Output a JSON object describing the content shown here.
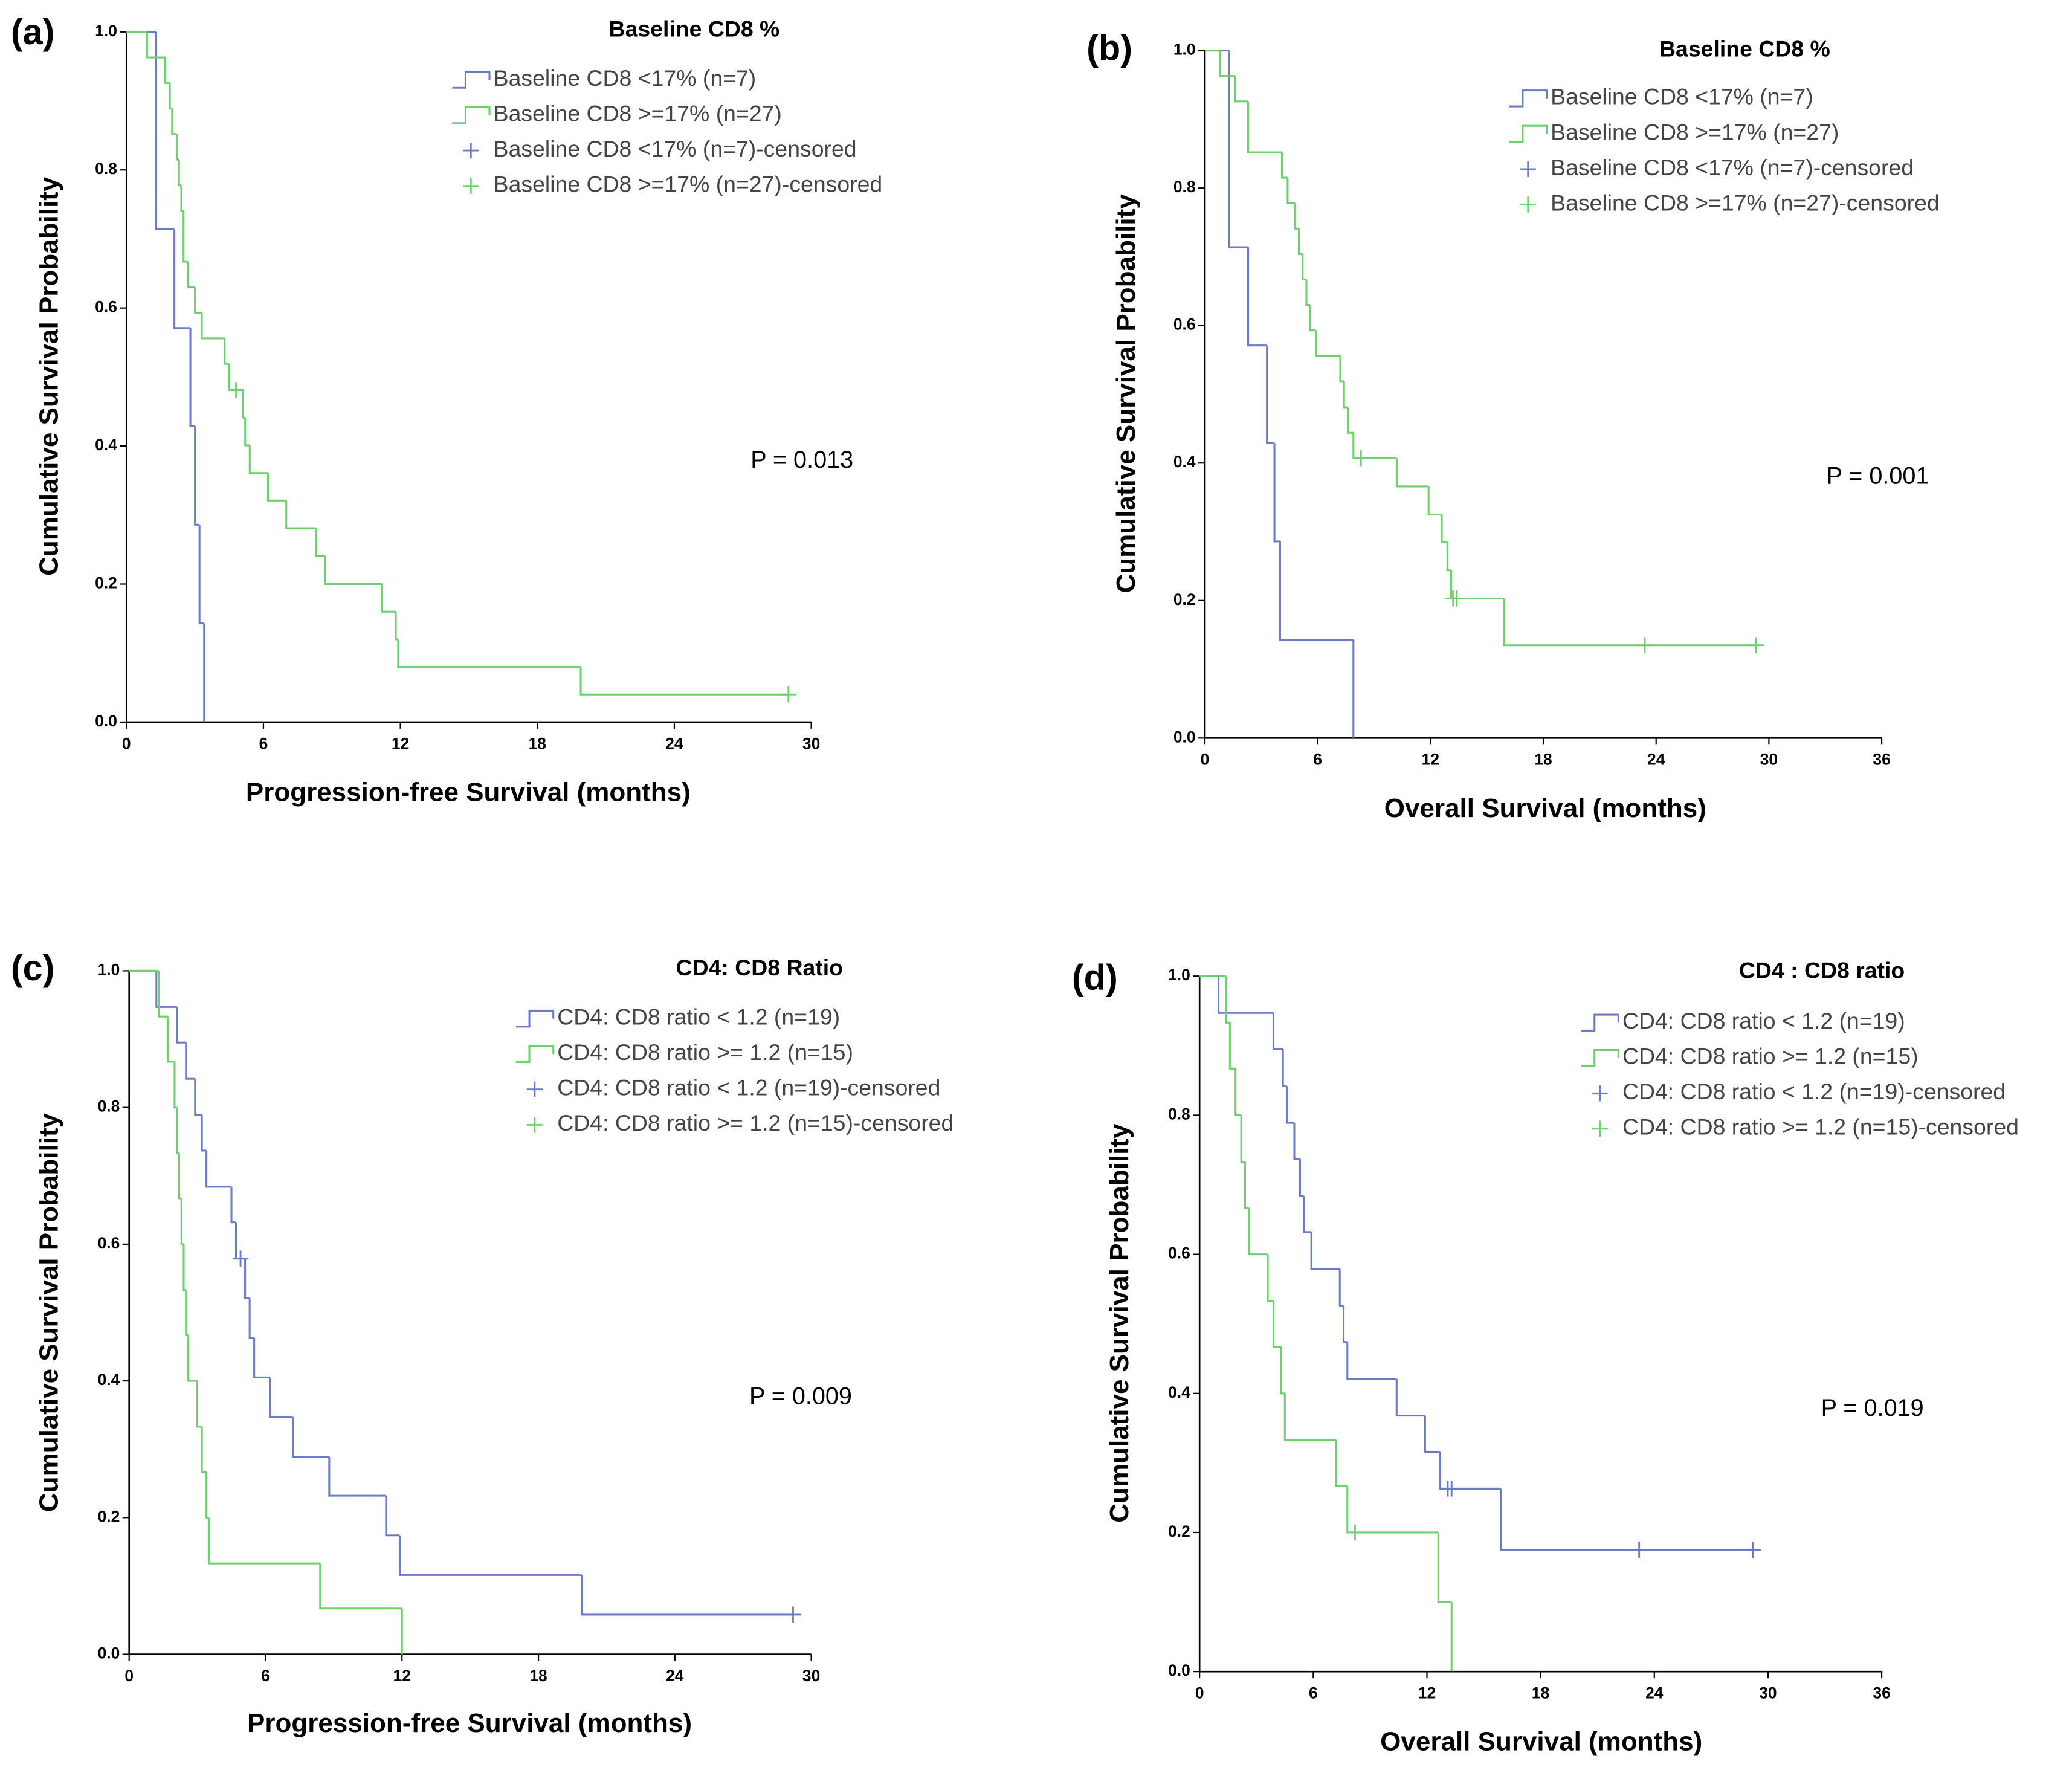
{
  "chart_data": [
    {
      "type": "step",
      "panel_label": "(a)",
      "legend_title": "Baseline CD8 %",
      "x_label": "Progression-free Survival (months)",
      "y_label": "Cumulative Survival Probability",
      "annotation": "P = 0.013",
      "xlim": [
        0,
        30
      ],
      "ylim": [
        0,
        1
      ],
      "xticks": [
        0,
        6,
        12,
        18,
        24,
        30
      ],
      "yticks": [
        {
          "value": 0,
          "label": "0.0"
        },
        0.2,
        0.4,
        0.6,
        0.8,
        {
          "value": 1,
          "label": "1.0"
        }
      ],
      "series": [
        {
          "name": "Baseline CD8 <17% (n=7)",
          "color": "#6a7cc5",
          "line": "step",
          "x": [
            0,
            1.3,
            2.1,
            2.8,
            3.0,
            3.2,
            3.4
          ],
          "values": [
            1,
            0.714,
            0.571,
            0.429,
            0.286,
            0.143,
            0
          ]
        },
        {
          "name": "Baseline CD8 >=17% (n=27)",
          "color": "#6dcf6d",
          "line": "step",
          "x": [
            0,
            0.9,
            1.7,
            1.9,
            2.0,
            2.2,
            2.3,
            2.4,
            2.5,
            2.7,
            3.0,
            3.3,
            4.3,
            4.5,
            5.1,
            5.2,
            5.4,
            6.2,
            7.0,
            8.3,
            8.7,
            11.2,
            11.8,
            11.9,
            19.9
          ],
          "values": [
            1,
            0.963,
            0.926,
            0.889,
            0.852,
            0.815,
            0.778,
            0.741,
            0.667,
            0.63,
            0.593,
            0.556,
            0.519,
            0.481,
            0.441,
            0.401,
            0.361,
            0.321,
            0.281,
            0.241,
            0.2,
            0.16,
            0.12,
            0.08,
            0.04
          ]
        },
        {
          "name": "Baseline CD8 <17% (n=7)-censored",
          "color": "#6a7cc5",
          "marker": "plus",
          "x": [],
          "values": []
        },
        {
          "name": "Baseline CD8 >=17% (n=27)-censored",
          "color": "#6dcf6d",
          "marker": "plus",
          "x": [
            4.8,
            29.0
          ],
          "values": [
            0.481,
            0.04
          ]
        }
      ]
    },
    {
      "type": "step",
      "panel_label": "(b)",
      "legend_title": "Baseline CD8 %",
      "x_label": "Overall Survival (months)",
      "y_label": "Cumulative Survival Probability",
      "annotation": "P = 0.001",
      "xlim": [
        0,
        36
      ],
      "ylim": [
        0,
        1
      ],
      "xticks": [
        0,
        6,
        12,
        18,
        24,
        30,
        36
      ],
      "yticks": [
        {
          "value": 0,
          "label": "0.0"
        },
        0.2,
        0.4,
        0.6,
        0.8,
        {
          "value": 1,
          "label": "1.0"
        }
      ],
      "series": [
        {
          "name": "Baseline CD8 <17% (n=7)",
          "color": "#6a7cc5",
          "line": "step",
          "x": [
            0,
            1.3,
            2.3,
            3.3,
            3.7,
            4.0,
            7.9
          ],
          "values": [
            1,
            0.714,
            0.571,
            0.429,
            0.286,
            0.143,
            0
          ]
        },
        {
          "name": "Baseline CD8 >=17% (n=27)",
          "color": "#6dcf6d",
          "line": "step",
          "x": [
            0,
            0.8,
            1.6,
            2.3,
            4.1,
            4.4,
            4.8,
            5.0,
            5.2,
            5.4,
            5.6,
            5.9,
            7.2,
            7.4,
            7.6,
            7.9,
            10.2,
            11.9,
            12.6,
            12.9,
            13.1,
            15.9
          ],
          "values": [
            1,
            0.963,
            0.926,
            0.852,
            0.815,
            0.778,
            0.741,
            0.704,
            0.667,
            0.63,
            0.593,
            0.556,
            0.519,
            0.481,
            0.444,
            0.407,
            0.366,
            0.325,
            0.285,
            0.244,
            0.203,
            0.135
          ]
        },
        {
          "name": "Baseline CD8 <17% (n=7)-censored",
          "color": "#6a7cc5",
          "marker": "plus",
          "x": [],
          "values": []
        },
        {
          "name": "Baseline CD8 >=17% (n=27)-censored",
          "color": "#6dcf6d",
          "marker": "plus",
          "x": [
            8.3,
            13.2,
            13.4,
            23.4,
            29.3
          ],
          "values": [
            0.407,
            0.203,
            0.203,
            0.135,
            0.135
          ]
        }
      ]
    },
    {
      "type": "step",
      "panel_label": "(c)",
      "legend_title": "CD4: CD8 Ratio",
      "x_label": "Progression-free Survival (months)",
      "y_label": "Cumulative Survival Probability",
      "annotation": "P = 0.009",
      "xlim": [
        0,
        30
      ],
      "ylim": [
        0,
        1
      ],
      "xticks": [
        0,
        6,
        12,
        18,
        24,
        30
      ],
      "yticks": [
        {
          "value": 0,
          "label": "0.0"
        },
        0.2,
        0.4,
        0.6,
        0.8,
        {
          "value": 1,
          "label": "1.0"
        }
      ],
      "series": [
        {
          "name": "CD4: CD8 ratio < 1.2 (n=19)",
          "color": "#6a7cc5",
          "line": "step",
          "x": [
            0,
            1.2,
            2.1,
            2.5,
            2.9,
            3.2,
            3.4,
            4.5,
            4.7,
            5.1,
            5.3,
            5.5,
            6.2,
            7.2,
            8.8,
            11.3,
            11.9,
            19.9
          ],
          "values": [
            1,
            0.947,
            0.895,
            0.842,
            0.789,
            0.737,
            0.684,
            0.632,
            0.579,
            0.521,
            0.463,
            0.405,
            0.347,
            0.289,
            0.232,
            0.174,
            0.116,
            0.058
          ]
        },
        {
          "name": "CD4: CD8 ratio >= 1.2 (n=15)",
          "color": "#6dcf6d",
          "line": "step",
          "x": [
            0,
            1.3,
            1.7,
            2.0,
            2.1,
            2.2,
            2.3,
            2.4,
            2.5,
            2.6,
            3.0,
            3.2,
            3.4,
            3.5,
            8.4,
            12.0
          ],
          "values": [
            1,
            0.933,
            0.867,
            0.8,
            0.733,
            0.667,
            0.6,
            0.533,
            0.467,
            0.4,
            0.333,
            0.267,
            0.2,
            0.133,
            0.067,
            0
          ]
        },
        {
          "name": "CD4: CD8 ratio < 1.2 (n=19)-censored",
          "color": "#6a7cc5",
          "marker": "plus",
          "x": [
            4.9,
            29.2
          ],
          "values": [
            0.579,
            0.058
          ]
        },
        {
          "name": "CD4: CD8 ratio >= 1.2 (n=15)-censored",
          "color": "#6dcf6d",
          "marker": "plus",
          "x": [],
          "values": []
        }
      ]
    },
    {
      "type": "step",
      "panel_label": "(d)",
      "legend_title": "CD4 : CD8 ratio",
      "x_label": "Overall Survival (months)",
      "y_label": "Cumulative Survival Probability",
      "annotation": "P = 0.019",
      "xlim": [
        0,
        36
      ],
      "ylim": [
        0,
        1
      ],
      "xticks": [
        0,
        6,
        12,
        18,
        24,
        30,
        36
      ],
      "yticks": [
        {
          "value": 0,
          "label": "0.0"
        },
        0.2,
        0.4,
        0.6,
        0.8,
        {
          "value": 1,
          "label": "1.0"
        }
      ],
      "series": [
        {
          "name": "CD4: CD8 ratio < 1.2 (n=19)",
          "color": "#6a7cc5",
          "line": "step",
          "x": [
            0,
            1.0,
            3.9,
            4.4,
            4.6,
            5.0,
            5.3,
            5.5,
            5.9,
            7.4,
            7.6,
            7.8,
            10.4,
            11.9,
            12.7,
            15.9
          ],
          "values": [
            1,
            0.947,
            0.895,
            0.842,
            0.789,
            0.737,
            0.684,
            0.632,
            0.579,
            0.526,
            0.474,
            0.421,
            0.368,
            0.316,
            0.263,
            0.175
          ]
        },
        {
          "name": "CD4: CD8 ratio >= 1.2 (n=15)",
          "color": "#6dcf6d",
          "line": "step",
          "x": [
            0,
            1.4,
            1.6,
            1.9,
            2.2,
            2.4,
            2.6,
            3.6,
            3.9,
            4.3,
            4.5,
            7.2,
            7.8,
            12.6,
            13.3
          ],
          "values": [
            1,
            0.933,
            0.867,
            0.8,
            0.733,
            0.667,
            0.6,
            0.533,
            0.467,
            0.4,
            0.333,
            0.267,
            0.2,
            0.1,
            0
          ]
        },
        {
          "name": "CD4: CD8 ratio < 1.2 (n=19)-censored",
          "color": "#6a7cc5",
          "marker": "plus",
          "x": [
            13.1,
            13.3,
            23.2,
            29.2
          ],
          "values": [
            0.263,
            0.263,
            0.175,
            0.175
          ]
        },
        {
          "name": "CD4: CD8 ratio >= 1.2 (n=15)-censored",
          "color": "#6dcf6d",
          "marker": "plus",
          "x": [
            8.2
          ],
          "values": [
            0.2
          ]
        }
      ]
    }
  ]
}
